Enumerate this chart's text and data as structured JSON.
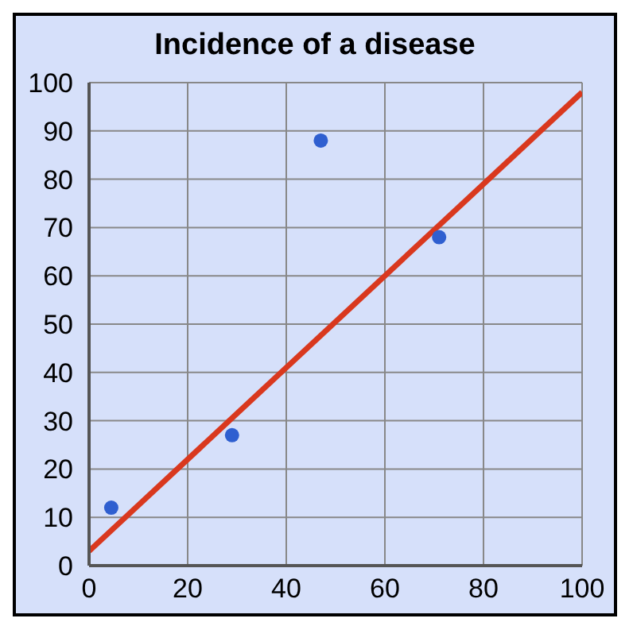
{
  "chart_data": {
    "type": "scatter",
    "title": "Incidence of a disease",
    "series": [
      {
        "color": "#2f5fd0",
        "x": [
          4.5,
          29,
          47,
          71
        ],
        "values": [
          12,
          27,
          88,
          68
        ],
        "marker": "circle"
      },
      {
        "type": "line",
        "color": "#d9381e",
        "x": [
          0,
          100
        ],
        "values": [
          3,
          98
        ],
        "marker": "none"
      }
    ],
    "xlim": [
      0,
      100
    ],
    "xticks": [
      0,
      20,
      40,
      60,
      80,
      100
    ],
    "ylim": [
      0,
      100
    ],
    "yticks": [
      0,
      10,
      20,
      30,
      40,
      50,
      60,
      70,
      80,
      90,
      100
    ],
    "grid": true
  }
}
